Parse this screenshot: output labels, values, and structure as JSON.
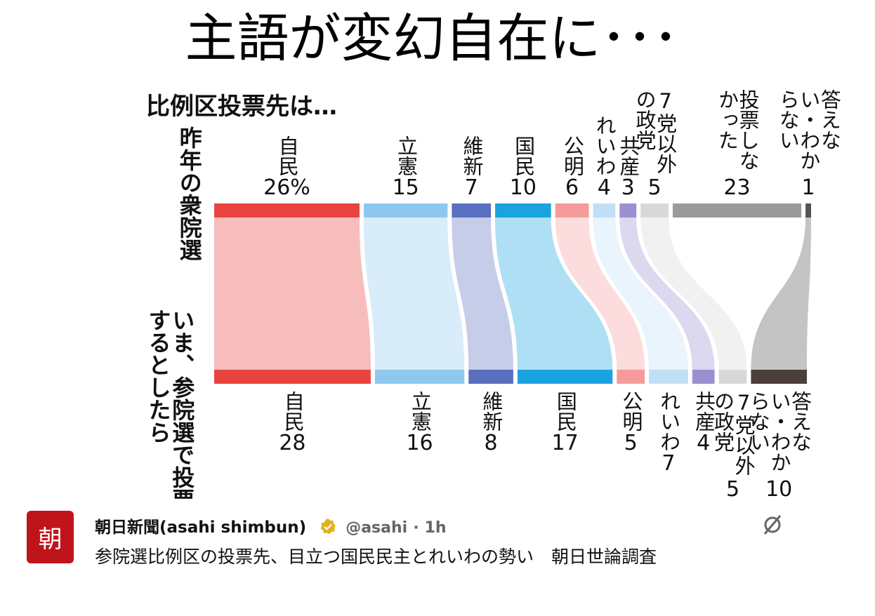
{
  "meme_title": "主語が変幻自在に･･･",
  "chart": {
    "title": "比例区投票先は…",
    "top_row_label": "昨年の衆院選",
    "bottom_row_label": "いま、参院選で投票するとしたら",
    "top": [
      {
        "label": "自民",
        "value": 26,
        "value_label": "26%",
        "color": "#e8433f"
      },
      {
        "label": "立憲",
        "value": 15,
        "color": "#8ec8ef"
      },
      {
        "label": "維新",
        "value": 7,
        "color": "#5a6fbf"
      },
      {
        "label": "国民",
        "value": 10,
        "color": "#1aa3e0"
      },
      {
        "label": "公明",
        "value": 6,
        "color": "#f59b9b"
      },
      {
        "label": "れいわ",
        "value": 4,
        "color": "#bfe0f5"
      },
      {
        "label": "共産",
        "value": 3,
        "color": "#9b8fd0"
      },
      {
        "label": "7党以外の政党",
        "value": 5,
        "color": "#d8d8d8"
      },
      {
        "label": "投票しなかった",
        "value": 23,
        "color": "#9a9a9a"
      },
      {
        "label": "答えない・わからない",
        "value": 1,
        "color": "#555555"
      }
    ],
    "bottom": [
      {
        "label": "自民",
        "value": 28,
        "color": "#e8433f"
      },
      {
        "label": "立憲",
        "value": 16,
        "color": "#8ec8ef"
      },
      {
        "label": "維新",
        "value": 8,
        "color": "#5a6fbf"
      },
      {
        "label": "国民",
        "value": 17,
        "color": "#1aa3e0"
      },
      {
        "label": "公明",
        "value": 5,
        "color": "#f59b9b"
      },
      {
        "label": "れいわ",
        "value": 7,
        "color": "#bfe0f5"
      },
      {
        "label": "共産",
        "value": 4,
        "color": "#9b8fd0"
      },
      {
        "label": "7党以外の政党",
        "value": 5,
        "color": "#d8d8d8"
      },
      {
        "label": "答えない・わからない",
        "value": 10,
        "color": "#4a3f3a"
      }
    ]
  },
  "tweet": {
    "avatar": "朝",
    "name": "朝日新聞(asahi shimbun)",
    "handle": "@asahi",
    "separator": "·",
    "time": "1h",
    "text": "参院選比例区の投票先、目立つ国民民主とれいわの勢い　朝日世論調査"
  }
}
